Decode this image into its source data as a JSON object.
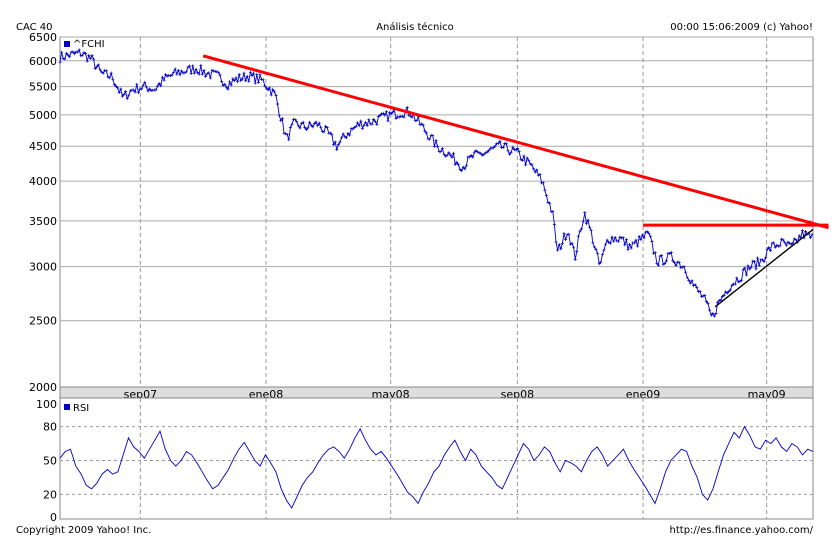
{
  "header": {
    "left": "CAC 40",
    "center": "Análisis técnico",
    "right": "00:00 15:06:2009 (c) Yahoo!"
  },
  "footer": {
    "left": "Copyright 2009 Yahoo! Inc.",
    "right": "http://es.finance.yahoo.com/"
  },
  "chart_data": [
    {
      "type": "line",
      "scale": "log",
      "ylim": [
        2000,
        6500
      ],
      "yticks": [
        2000,
        2500,
        3000,
        3500,
        4000,
        4500,
        5000,
        5500,
        6000,
        6500
      ],
      "x_range": [
        "2007-06-15",
        "2009-06-15"
      ],
      "xticks": [
        {
          "label": "sep07",
          "date": "2007-09-01"
        },
        {
          "label": "ene08",
          "date": "2008-01-01"
        },
        {
          "label": "may08",
          "date": "2008-05-01"
        },
        {
          "label": "sep08",
          "date": "2008-09-01"
        },
        {
          "label": "ene09",
          "date": "2009-01-01"
        },
        {
          "label": "may09",
          "date": "2009-05-01"
        }
      ],
      "grid": true,
      "legend": "top-left",
      "series": [
        {
          "name": "^FCHI",
          "color": "#0000cc",
          "points": [
            [
              "2007-06-15",
              6080
            ],
            [
              "2007-06-25",
              6120
            ],
            [
              "2007-07-05",
              6160
            ],
            [
              "2007-07-15",
              6050
            ],
            [
              "2007-07-25",
              5750
            ],
            [
              "2007-08-05",
              5680
            ],
            [
              "2007-08-15",
              5300
            ],
            [
              "2007-08-25",
              5450
            ],
            [
              "2007-09-05",
              5500
            ],
            [
              "2007-09-15",
              5450
            ],
            [
              "2007-09-25",
              5650
            ],
            [
              "2007-10-05",
              5750
            ],
            [
              "2007-10-15",
              5800
            ],
            [
              "2007-10-25",
              5850
            ],
            [
              "2007-11-05",
              5750
            ],
            [
              "2007-11-15",
              5700
            ],
            [
              "2007-11-25",
              5550
            ],
            [
              "2007-12-05",
              5650
            ],
            [
              "2007-12-15",
              5700
            ],
            [
              "2007-12-28",
              5620
            ],
            [
              "2008-01-10",
              5350
            ],
            [
              "2008-01-21",
              4600
            ],
            [
              "2008-01-28",
              4850
            ],
            [
              "2008-02-10",
              4800
            ],
            [
              "2008-02-20",
              4850
            ],
            [
              "2008-03-01",
              4700
            ],
            [
              "2008-03-10",
              4500
            ],
            [
              "2008-03-20",
              4700
            ],
            [
              "2008-04-01",
              4850
            ],
            [
              "2008-04-15",
              4900
            ],
            [
              "2008-05-01",
              5000
            ],
            [
              "2008-05-12",
              5050
            ],
            [
              "2008-05-20",
              5050
            ],
            [
              "2008-06-01",
              4800
            ],
            [
              "2008-06-15",
              4500
            ],
            [
              "2008-06-25",
              4400
            ],
            [
              "2008-07-10",
              4200
            ],
            [
              "2008-07-20",
              4350
            ],
            [
              "2008-08-01",
              4400
            ],
            [
              "2008-08-15",
              4500
            ],
            [
              "2008-09-01",
              4400
            ],
            [
              "2008-09-15",
              4200
            ],
            [
              "2008-09-25",
              4000
            ],
            [
              "2008-10-05",
              3600
            ],
            [
              "2008-10-10",
              3150
            ],
            [
              "2008-10-20",
              3400
            ],
            [
              "2008-10-27",
              3100
            ],
            [
              "2008-11-05",
              3600
            ],
            [
              "2008-11-12",
              3350
            ],
            [
              "2008-11-20",
              3000
            ],
            [
              "2008-11-28",
              3300
            ],
            [
              "2008-12-10",
              3300
            ],
            [
              "2008-12-20",
              3200
            ],
            [
              "2009-01-06",
              3350
            ],
            [
              "2009-01-15",
              3050
            ],
            [
              "2009-01-28",
              3100
            ],
            [
              "2009-02-10",
              3000
            ],
            [
              "2009-02-20",
              2800
            ],
            [
              "2009-03-01",
              2700
            ],
            [
              "2009-03-09",
              2520
            ],
            [
              "2009-03-15",
              2650
            ],
            [
              "2009-03-25",
              2800
            ],
            [
              "2009-04-05",
              2900
            ],
            [
              "2009-04-15",
              3000
            ],
            [
              "2009-04-25",
              3050
            ],
            [
              "2009-05-05",
              3200
            ],
            [
              "2009-05-15",
              3250
            ],
            [
              "2009-05-25",
              3200
            ],
            [
              "2009-06-05",
              3350
            ],
            [
              "2009-06-15",
              3300
            ]
          ]
        }
      ],
      "annotations": [
        {
          "kind": "trend-line",
          "color": "#ff0000",
          "from": [
            "2007-11-01",
            6100
          ],
          "to": [
            "2009-06-30",
            3420
          ]
        },
        {
          "kind": "resistance-line",
          "color": "#ff0000",
          "from": [
            "2009-01-01",
            3450
          ],
          "to": [
            "2009-06-30",
            3450
          ]
        },
        {
          "kind": "support-line",
          "color": "#000000",
          "from": [
            "2009-03-12",
            2620
          ],
          "to": [
            "2009-06-15",
            3400
          ]
        }
      ]
    },
    {
      "type": "line",
      "ylim": [
        0,
        100
      ],
      "yticks": [
        0,
        20,
        50,
        80,
        100
      ],
      "reference_lines": [
        20,
        50,
        80
      ],
      "legend": "top-left",
      "series": [
        {
          "name": "RSI",
          "color": "#0000cc",
          "values": [
            52,
            58,
            60,
            45,
            38,
            28,
            25,
            30,
            38,
            42,
            38,
            40,
            55,
            70,
            62,
            58,
            52,
            60,
            68,
            76,
            60,
            50,
            45,
            50,
            58,
            55,
            48,
            40,
            32,
            25,
            28,
            35,
            42,
            52,
            60,
            66,
            58,
            50,
            45,
            55,
            48,
            40,
            25,
            15,
            8,
            18,
            28,
            35,
            40,
            48,
            55,
            60,
            62,
            58,
            52,
            60,
            70,
            78,
            68,
            60,
            55,
            58,
            52,
            45,
            38,
            30,
            22,
            18,
            12,
            22,
            30,
            40,
            45,
            55,
            62,
            68,
            58,
            50,
            60,
            55,
            45,
            40,
            35,
            28,
            25,
            35,
            45,
            55,
            65,
            60,
            50,
            55,
            62,
            58,
            48,
            40,
            50,
            48,
            45,
            40,
            50,
            58,
            62,
            55,
            45,
            50,
            55,
            60,
            50,
            42,
            35,
            28,
            20,
            12,
            25,
            40,
            50,
            55,
            60,
            58,
            45,
            35,
            20,
            15,
            25,
            40,
            55,
            65,
            75,
            70,
            80,
            72,
            62,
            60,
            68,
            65,
            70,
            62,
            58,
            65,
            62,
            55,
            60,
            58
          ]
        }
      ]
    }
  ]
}
